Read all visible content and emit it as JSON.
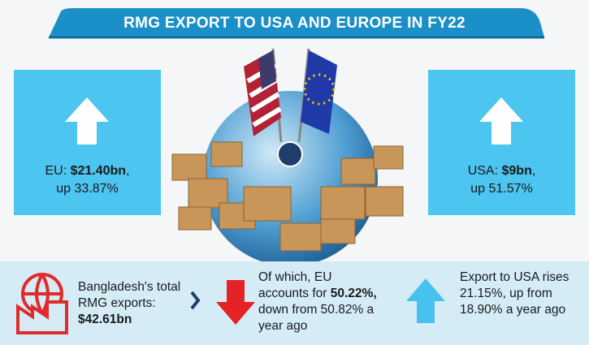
{
  "header": {
    "title": "RMG EXPORT TO USA AND EUROPE  IN FY22"
  },
  "eu_box": {
    "label": "EU:",
    "amount": "$21.40bn",
    "comma": ",",
    "change": "up 33.87%"
  },
  "usa_box": {
    "label": "USA:",
    "amount": "$9bn",
    "comma": ",",
    "change": "up 51.57%"
  },
  "bottom": {
    "total": {
      "text": "Bangladesh's total RMG exports:",
      "amount": "$42.61bn"
    },
    "eu_share": {
      "before": "Of which, EU accounts for",
      "share": "50.22%,",
      "after": "down from 50.82% a year ago"
    },
    "usa_share": {
      "text": "Export to USA rises 21.15%, up from 18.90% a year ago"
    }
  }
}
